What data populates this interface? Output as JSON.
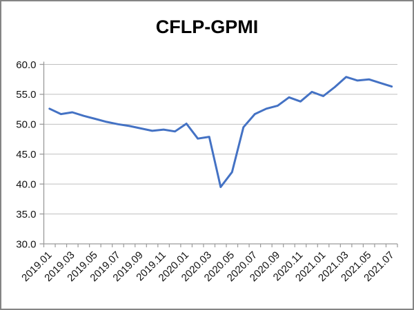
{
  "window": {
    "title": "CFLP-GPMI"
  },
  "chart_data": {
    "type": "line",
    "title": "CFLP-GPMI",
    "x": [
      "2019.01",
      "2019.02",
      "2019.03",
      "2019.04",
      "2019.05",
      "2019.06",
      "2019.07",
      "2019.08",
      "2019.09",
      "2019.10",
      "2019.11",
      "2019.12",
      "2020.01",
      "2020.02",
      "2020.03",
      "2020.04",
      "2020.05",
      "2020.06",
      "2020.07",
      "2020.08",
      "2020.09",
      "2020.10",
      "2020.11",
      "2020.12",
      "2021.01",
      "2021.02",
      "2021.03",
      "2021.04",
      "2021.05",
      "2021.06",
      "2021.07"
    ],
    "series": [
      {
        "name": "CFLP-GPMI",
        "color": "#4472C4",
        "values": [
          52.6,
          51.7,
          52.0,
          51.4,
          50.9,
          50.4,
          50.0,
          49.7,
          49.3,
          48.9,
          49.1,
          48.8,
          50.1,
          47.6,
          47.9,
          39.5,
          42.0,
          49.5,
          51.7,
          52.6,
          53.1,
          54.5,
          53.8,
          55.4,
          54.7,
          56.2,
          57.9,
          57.3,
          57.5,
          56.9,
          56.3
        ]
      }
    ],
    "ylim": [
      30,
      60
    ],
    "ytick_step": 5,
    "ytick_format_decimals": 1,
    "xtick_label_every": 2,
    "xtick_label_rotation_deg": -45,
    "grid": true,
    "legend_position": "none",
    "colors": {
      "gridline": "#bfbfbf",
      "axis": "#9a9a9a",
      "tick": "#9a9a9a",
      "text": "#111111",
      "background": "#ffffff",
      "border": "#848484"
    }
  }
}
